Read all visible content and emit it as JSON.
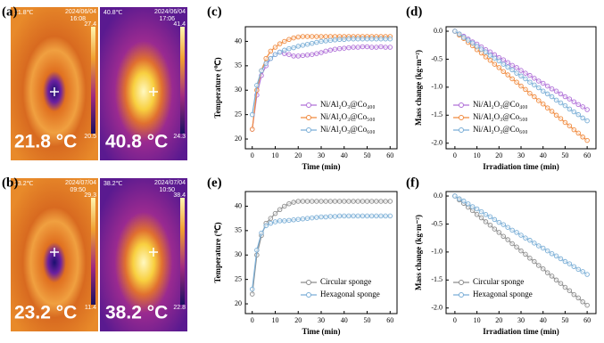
{
  "panel_labels": [
    "(a)",
    "(b)",
    "(c)",
    "(d)",
    "(e)",
    "(f)"
  ],
  "images": [
    [
      {
        "temp": "21.8℃",
        "date": "2024/06/04",
        "time": "16:08",
        "scale_max": "27.4",
        "scale_min": "20.5",
        "reading": "21.8 °C"
      },
      {
        "temp": "40.8℃",
        "date": "2024/06/04",
        "time": "17:06",
        "scale_max": "41.4",
        "scale_min": "24.3",
        "reading": "40.8 °C"
      }
    ],
    [
      {
        "temp": "23.2℃",
        "date": "2024/07/04",
        "time": "09:50",
        "scale_max": "29.3",
        "scale_min": "11.4",
        "reading": "23.2 °C"
      },
      {
        "temp": "38.2℃",
        "date": "2024/07/04",
        "time": "10:50",
        "scale_max": "38.4",
        "scale_min": "22.8",
        "reading": "38.2 °C"
      }
    ]
  ],
  "chart_data": [
    {
      "type": "line",
      "xlabel": "Time (min)",
      "ylabel": "Temperature (℃)",
      "x": [
        0,
        2,
        4,
        6,
        8,
        10,
        12,
        14,
        16,
        18,
        20,
        22,
        24,
        26,
        28,
        30,
        32,
        34,
        36,
        38,
        40,
        42,
        44,
        46,
        48,
        50,
        52,
        54,
        56,
        58,
        60
      ],
      "xlim": [
        -3,
        63
      ],
      "ylim": [
        18,
        43
      ],
      "xticks": [
        0,
        10,
        20,
        30,
        40,
        50,
        60
      ],
      "yticks": [
        20,
        25,
        30,
        35,
        40
      ],
      "legend": "lower right",
      "series": [
        {
          "name": "Ni/Al₂O₃@Co₄₀₀",
          "color": "#b070d8",
          "values": [
            22,
            29,
            33,
            35,
            36.5,
            37.3,
            37.8,
            37.5,
            37.3,
            37.0,
            37.0,
            37.1,
            37.2,
            37.3,
            37.5,
            37.7,
            38,
            38.2,
            38.4,
            38.5,
            38.6,
            38.7,
            38.8,
            38.8,
            38.9,
            38.9,
            38.8,
            38.8,
            38.9,
            38.8,
            38.8
          ]
        },
        {
          "name": "Ni/Al₂O₃@Co₅₀₀",
          "color": "#f08a3e",
          "values": [
            22,
            30,
            34,
            36.5,
            38,
            38.8,
            39.5,
            40,
            40.4,
            40.7,
            40.9,
            41,
            41,
            41,
            41,
            41,
            41,
            41,
            41,
            41,
            41,
            41,
            41,
            41,
            41,
            41,
            41,
            41,
            41,
            41,
            41
          ]
        },
        {
          "name": "Ni/Al₂O₃@Co₆₀₀",
          "color": "#7aaed6",
          "values": [
            25,
            31,
            34,
            35.5,
            36.5,
            37.3,
            37.8,
            38.2,
            38.5,
            38.7,
            39,
            39.2,
            39.4,
            39.6,
            39.8,
            40,
            40.1,
            40.2,
            40.3,
            40.4,
            40.4,
            40.5,
            40.5,
            40.5,
            40.5,
            40.5,
            40.5,
            40.5,
            40.5,
            40.5,
            40.5
          ]
        }
      ]
    },
    {
      "type": "line",
      "xlabel": "Irradiation time (min)",
      "ylabel": "Mass change (kg·m⁻²)",
      "x": [
        0,
        2,
        4,
        6,
        8,
        10,
        12,
        14,
        16,
        18,
        20,
        22,
        24,
        26,
        28,
        30,
        32,
        34,
        36,
        38,
        40,
        42,
        44,
        46,
        48,
        50,
        52,
        54,
        56,
        58,
        60
      ],
      "xlim": [
        -4,
        64
      ],
      "ylim": [
        -2.1,
        0.08
      ],
      "xticks": [
        0,
        10,
        20,
        30,
        40,
        50,
        60
      ],
      "yticks": [
        {
          "value": 0,
          "label": "0.0"
        },
        -0.5,
        {
          "value": -1,
          "label": "-1.0"
        },
        -1.5,
        {
          "value": -2,
          "label": "-2.0"
        }
      ],
      "legend": "lower left",
      "series": [
        {
          "name": "Ni/Al₂O₃@Co₄₀₀",
          "color": "#b070d8",
          "values": [
            0,
            -0.05,
            -0.09,
            -0.14,
            -0.19,
            -0.23,
            -0.28,
            -0.33,
            -0.37,
            -0.42,
            -0.47,
            -0.51,
            -0.56,
            -0.61,
            -0.65,
            -0.7,
            -0.75,
            -0.79,
            -0.84,
            -0.89,
            -0.93,
            -0.98,
            -1.03,
            -1.07,
            -1.12,
            -1.17,
            -1.21,
            -1.26,
            -1.31,
            -1.35,
            -1.4
          ]
        },
        {
          "name": "Ni/Al₂O₃@Co₅₀₀",
          "color": "#f08a3e",
          "values": [
            0,
            -0.07,
            -0.13,
            -0.2,
            -0.26,
            -0.33,
            -0.39,
            -0.46,
            -0.52,
            -0.59,
            -0.65,
            -0.72,
            -0.78,
            -0.85,
            -0.91,
            -0.98,
            -1.04,
            -1.11,
            -1.17,
            -1.24,
            -1.3,
            -1.37,
            -1.43,
            -1.5,
            -1.56,
            -1.63,
            -1.69,
            -1.76,
            -1.82,
            -1.89,
            -1.95
          ]
        },
        {
          "name": "Ni/Al₂O₃@Co₆₀₀",
          "color": "#7aaed6",
          "values": [
            0,
            -0.05,
            -0.11,
            -0.16,
            -0.21,
            -0.27,
            -0.32,
            -0.37,
            -0.43,
            -0.48,
            -0.53,
            -0.59,
            -0.64,
            -0.69,
            -0.75,
            -0.8,
            -0.85,
            -0.91,
            -0.96,
            -1.01,
            -1.07,
            -1.12,
            -1.17,
            -1.23,
            -1.28,
            -1.33,
            -1.39,
            -1.44,
            -1.49,
            -1.55,
            -1.6
          ]
        }
      ]
    },
    {
      "type": "line",
      "xlabel": "Time (min)",
      "ylabel": "Temperature (℃)",
      "x": [
        0,
        2,
        4,
        6,
        8,
        10,
        12,
        14,
        16,
        18,
        20,
        22,
        24,
        26,
        28,
        30,
        32,
        34,
        36,
        38,
        40,
        42,
        44,
        46,
        48,
        50,
        52,
        54,
        56,
        58,
        60
      ],
      "xlim": [
        -3,
        63
      ],
      "ylim": [
        18,
        43
      ],
      "xticks": [
        0,
        10,
        20,
        30,
        40,
        50,
        60
      ],
      "yticks": [
        20,
        25,
        30,
        35,
        40
      ],
      "legend": "lower right",
      "series": [
        {
          "name": "Circular sponge",
          "color": "#8c8c8c",
          "values": [
            22,
            30,
            34,
            36.5,
            37.5,
            38.5,
            39.3,
            40,
            40.5,
            40.8,
            41,
            41,
            41,
            41,
            41,
            41,
            41,
            41,
            41,
            41,
            41,
            41,
            41,
            41,
            41,
            41,
            41,
            41,
            41,
            41,
            41
          ]
        },
        {
          "name": "Hexagonal sponge",
          "color": "#7aaed6",
          "values": [
            23,
            31,
            34.5,
            36,
            36.5,
            36.8,
            37,
            37,
            37.1,
            37.2,
            37.3,
            37.4,
            37.5,
            37.6,
            37.7,
            37.8,
            37.8,
            37.9,
            37.9,
            38,
            38,
            38,
            38,
            38,
            38,
            38,
            38,
            38,
            38,
            38,
            38
          ]
        }
      ]
    },
    {
      "type": "line",
      "xlabel": "Irradiation time (min)",
      "ylabel": "Mass change (kg·m⁻²)",
      "x": [
        0,
        2,
        4,
        6,
        8,
        10,
        12,
        14,
        16,
        18,
        20,
        22,
        24,
        26,
        28,
        30,
        32,
        34,
        36,
        38,
        40,
        42,
        44,
        46,
        48,
        50,
        52,
        54,
        56,
        58,
        60
      ],
      "xlim": [
        -4,
        64
      ],
      "ylim": [
        -2.1,
        0.08
      ],
      "xticks": [
        0,
        10,
        20,
        30,
        40,
        50,
        60
      ],
      "yticks": [
        {
          "value": 0,
          "label": "0.0"
        },
        -0.5,
        {
          "value": -1,
          "label": "-1.0"
        },
        -1.5,
        {
          "value": -2,
          "label": "-2.0"
        }
      ],
      "legend": "lower left",
      "series": [
        {
          "name": "Circular sponge",
          "color": "#8c8c8c",
          "values": [
            0,
            -0.07,
            -0.13,
            -0.2,
            -0.26,
            -0.33,
            -0.39,
            -0.46,
            -0.52,
            -0.59,
            -0.65,
            -0.72,
            -0.78,
            -0.85,
            -0.91,
            -0.98,
            -1.04,
            -1.11,
            -1.17,
            -1.24,
            -1.3,
            -1.37,
            -1.43,
            -1.5,
            -1.56,
            -1.63,
            -1.69,
            -1.76,
            -1.82,
            -1.89,
            -1.95
          ]
        },
        {
          "name": "Hexagonal sponge",
          "color": "#7aaed6",
          "values": [
            0,
            -0.05,
            -0.09,
            -0.14,
            -0.19,
            -0.23,
            -0.28,
            -0.33,
            -0.37,
            -0.42,
            -0.47,
            -0.51,
            -0.56,
            -0.61,
            -0.65,
            -0.7,
            -0.75,
            -0.79,
            -0.84,
            -0.89,
            -0.93,
            -0.98,
            -1.03,
            -1.07,
            -1.12,
            -1.17,
            -1.21,
            -1.26,
            -1.31,
            -1.35,
            -1.4
          ]
        }
      ]
    }
  ]
}
